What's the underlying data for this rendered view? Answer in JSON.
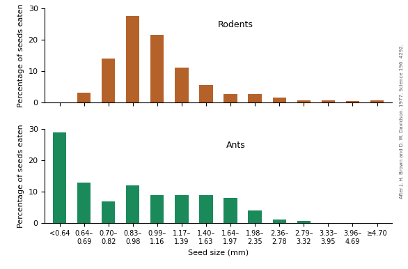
{
  "chart_data": [
    {
      "type": "bar",
      "annotation": "Rodents",
      "ylabel": "Percentage of seeds eaten",
      "categories": [
        "<0.64",
        "0.64–\n0.69",
        "0.70–\n0.82",
        "0.83–\n0.98",
        "0.99–\n1.16",
        "1.17–\n1.39",
        "1.40–\n1.63",
        "1.64–\n1.97",
        "1.98–\n2.35",
        "2.36–\n2.78",
        "2.79–\n3.32",
        "3.33–\n3.95",
        "3.96–\n4.69",
        "≥4.70"
      ],
      "values": [
        0,
        3,
        14,
        27.5,
        21.5,
        11,
        5.5,
        2.5,
        2.5,
        1.5,
        0.7,
        0.6,
        0.4,
        0.5
      ],
      "color": "#b5622a",
      "ylim": [
        0,
        30
      ],
      "yticks": [
        0,
        10,
        20,
        30
      ],
      "tick_labels": "y"
    },
    {
      "type": "bar",
      "annotation": "Ants",
      "ylabel": "Percentage of seeds eaten",
      "xlabel": "Seed size (mm)",
      "categories": [
        "<0.64",
        "0.64–\n0.69",
        "0.70–\n0.82",
        "0.83–\n0.98",
        "0.99–\n1.16",
        "1.17–\n1.39",
        "1.40–\n1.63",
        "1.64–\n1.97",
        "1.98–\n2.35",
        "2.36–\n2.78",
        "2.79–\n3.32",
        "3.33–\n3.95",
        "3.96–\n4.69",
        "≥4.70"
      ],
      "values": [
        29,
        13,
        7,
        12,
        9,
        9,
        9,
        8,
        4,
        1.2,
        0.8,
        0,
        0,
        0
      ],
      "color": "#1a8a5a",
      "ylim": [
        0,
        30
      ],
      "yticks": [
        0,
        10,
        20,
        30
      ]
    }
  ],
  "credit": "After J. H. Brown and D. W. Davidson. 1977. Science 196: 4292."
}
